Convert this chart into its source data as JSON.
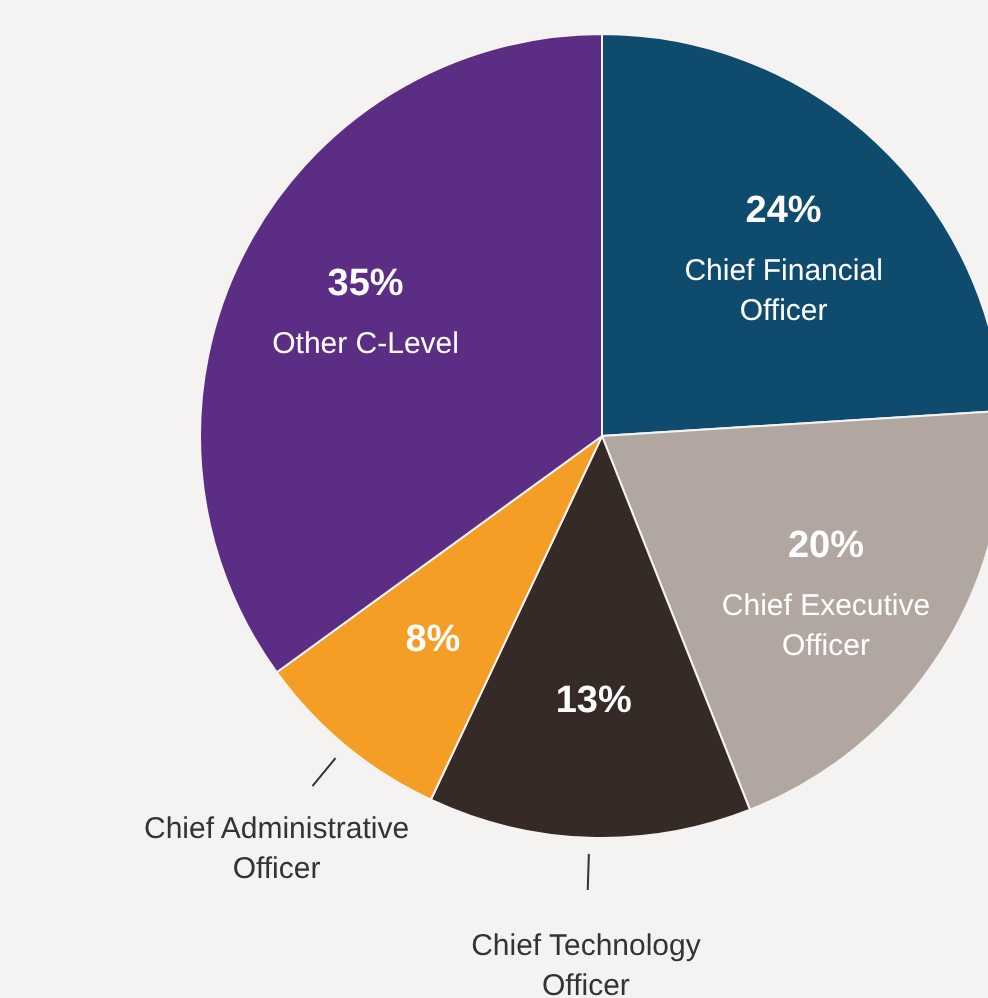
{
  "chart_data": {
    "type": "pie",
    "categories": [
      "Chief Financial Officer",
      "Chief Executive Officer",
      "Chief Technology Officer",
      "Chief Administrative Officer",
      "Other C-Level"
    ],
    "values": [
      24,
      20,
      13,
      8,
      35
    ],
    "colors": [
      "#0e4b6c",
      "#b1a7a0",
      "#362a26",
      "#f59e25",
      "#5b2d84"
    ],
    "value_labels": [
      "24%",
      "20%",
      "13%",
      "8%",
      "35%"
    ],
    "legend": false
  }
}
